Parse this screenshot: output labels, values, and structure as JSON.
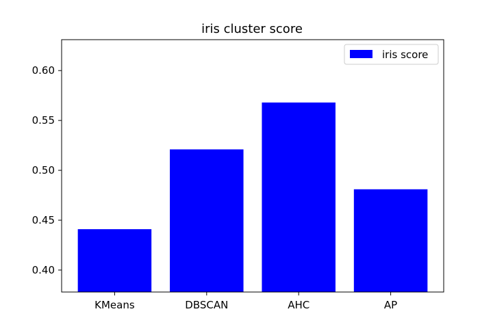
{
  "chart_data": {
    "type": "bar",
    "title": "iris cluster score",
    "xlabel": "",
    "ylabel": "",
    "categories": [
      "KMeans",
      "DBSCAN",
      "AHC",
      "AP"
    ],
    "series": [
      {
        "name": "iris score",
        "values": [
          0.441,
          0.521,
          0.568,
          0.481
        ],
        "color": "#0000ff"
      }
    ],
    "ylim": [
      0.378,
      0.631
    ],
    "yticks": [
      0.4,
      0.45,
      0.5,
      0.55,
      0.6
    ],
    "ytick_labels": [
      "0.40",
      "0.45",
      "0.50",
      "0.55",
      "0.60"
    ],
    "grid": false,
    "legend_position": "upper right"
  }
}
